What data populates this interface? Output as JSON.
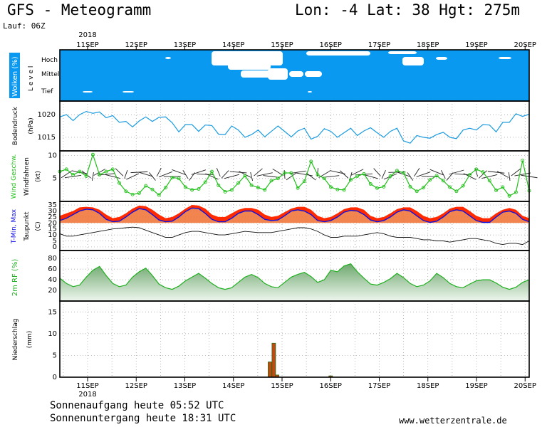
{
  "header": {
    "title": "GFS - Meteogramm",
    "location": "Lon: -4 Lat: 38 Hgt: 275m",
    "run": "Lauf: 06Z"
  },
  "footer": {
    "sunrise": "Sonnenaufgang heute 05:52 UTC",
    "sunset": "Sonnenuntergang heute 18:31 UTC",
    "site": "www.wetterzentrale.de"
  },
  "chart_data": {
    "type": "line",
    "year": "2018",
    "dates": [
      "11SEP",
      "12SEP",
      "13SEP",
      "14SEP",
      "15SEP",
      "16SEP",
      "17SEP",
      "18SEP",
      "19SEP",
      "20SEP"
    ],
    "colors": {
      "cloud_bg": "#0a99f0",
      "pressure": "#1a9be0",
      "wind": "#22c01a",
      "tmax": "#ff2a00",
      "tmin": "#1010e0",
      "rh": "#1fb01f",
      "precip": "#c04a10"
    },
    "panels": {
      "clouds": {
        "ylabel": "Wolken (%)",
        "ylabel2": "L e v e l",
        "levels": [
          "Hoch",
          "Mittel",
          "Tief"
        ]
      },
      "pressure": {
        "ylabel": "Bodendruck",
        "ylabel2": "(hPa)",
        "ticks": [
          "1020",
          "1015"
        ],
        "ylim": [
          1012,
          1023
        ],
        "values": [
          1019.5,
          1020,
          1018.7,
          1020,
          1020.7,
          1020.3,
          1020.6,
          1019.3,
          1019.8,
          1018.3,
          1018.5,
          1017.3,
          1018.6,
          1019.5,
          1018.5,
          1019.4,
          1019.5,
          1018.2,
          1016.2,
          1017.8,
          1017.8,
          1016.3,
          1017.7,
          1017.6,
          1015.7,
          1015.6,
          1017.5,
          1016.6,
          1015.0,
          1015.6,
          1016.6,
          1015.1,
          1016.3,
          1017.5,
          1016.3,
          1015.1,
          1016.4,
          1017.0,
          1014.6,
          1015.2,
          1016.9,
          1016.3,
          1015.0,
          1016.0,
          1017.0,
          1015.4,
          1016.4,
          1017.1,
          1016.0,
          1015.0,
          1016.3,
          1017.0,
          1014.2,
          1013.7,
          1015.4,
          1015.0,
          1014.8,
          1015.6,
          1016.1,
          1015.0,
          1014.7,
          1016.6,
          1017.0,
          1016.6,
          1017.8,
          1017.7,
          1016.2,
          1018.3,
          1018.3,
          1020.2,
          1019.6,
          1020.1
        ]
      },
      "wind": {
        "ylabel": "Wind Geschw.",
        "ylabel2": "Windfahnen",
        "ylabel3": "(kt)",
        "ticks": [
          "10",
          "5"
        ],
        "ylim": [
          0,
          11
        ],
        "values": [
          6.5,
          7,
          5.8,
          6.5,
          5.5,
          10.2,
          5.8,
          6.5,
          7,
          4,
          2.2,
          1.5,
          1.8,
          3.4,
          2.6,
          1.4,
          3,
          5.2,
          5,
          3.1,
          2.5,
          2.7,
          4.2,
          6.5,
          3.5,
          2.1,
          2.5,
          4,
          5.6,
          3.5,
          3,
          2.5,
          4.5,
          5,
          6.2,
          6.2,
          2.9,
          4.4,
          8.7,
          5.8,
          5,
          3.1,
          2.6,
          2.5,
          4.7,
          5.5,
          6,
          3.8,
          2.9,
          3.2,
          5.5,
          6.7,
          6.2,
          3.2,
          2.2,
          3,
          4.7,
          5.6,
          4.5,
          3.1,
          2.2,
          3.4,
          5.8,
          7,
          6.4,
          4.5,
          2.4,
          3.1,
          1.2,
          2,
          8.9,
          2.3
        ]
      },
      "temperature": {
        "ylabel": "T-Min, Max",
        "ylabel2": "Taupunkt",
        "ylabel3": "(C)",
        "ticks": [
          "35",
          "30",
          "25",
          "20",
          "15",
          "10",
          "5",
          "0"
        ],
        "ylim": [
          -3,
          38
        ],
        "tmin": [
          22,
          24,
          27,
          30,
          31.5,
          31,
          28,
          23,
          21,
          21.5,
          25,
          29,
          32,
          31,
          27,
          22.5,
          21,
          21.5,
          25,
          29.5,
          32.5,
          32,
          28,
          23,
          21,
          21,
          24,
          28,
          30,
          30,
          27,
          23,
          22,
          22.5,
          26,
          30,
          31,
          30,
          27,
          22,
          21,
          22,
          25,
          29,
          30.5,
          30,
          27,
          22.5,
          21,
          22,
          25,
          29,
          31,
          30,
          26,
          22,
          20.5,
          21.5,
          25,
          29.5,
          31,
          30,
          26,
          22,
          20.5,
          20.5,
          25,
          29,
          30,
          28,
          23,
          21
        ],
        "tmax": [
          26,
          28,
          30,
          33,
          33.5,
          33,
          31,
          27,
          24,
          25,
          28,
          32,
          34.5,
          34,
          31,
          27,
          24,
          25,
          28,
          32,
          35,
          34.5,
          32,
          27,
          25,
          25,
          28,
          31,
          32.5,
          32.5,
          31,
          27,
          25,
          26,
          29,
          32,
          33.5,
          33.5,
          31,
          26,
          24,
          25,
          28,
          31.5,
          33,
          33,
          31,
          26,
          24,
          25,
          28,
          31.5,
          33,
          33,
          30,
          26,
          24,
          25,
          28,
          32,
          33.5,
          33.5,
          30,
          26,
          24,
          24,
          28,
          31,
          32.5,
          31,
          26,
          24
        ],
        "dewpoint": [
          11,
          9,
          9,
          10,
          11,
          12,
          13,
          14,
          15,
          15.5,
          16,
          16.5,
          16,
          14,
          12,
          10,
          8,
          8,
          10,
          12,
          13,
          13,
          12,
          11,
          10,
          10,
          11,
          12,
          13,
          12.5,
          12,
          12,
          12,
          13,
          14,
          15,
          16,
          16,
          15,
          13,
          10,
          8,
          8,
          9,
          9,
          9,
          10,
          11,
          12,
          11,
          9,
          8,
          8,
          8,
          7,
          6,
          6,
          5,
          5,
          4,
          5,
          6,
          7,
          7,
          6,
          5,
          3,
          2,
          3,
          3,
          2,
          5
        ]
      },
      "rh": {
        "ylabel": "2m RF (%)",
        "ticks": [
          "80",
          "60",
          "40",
          "20"
        ],
        "ylim": [
          0,
          95
        ],
        "values": [
          43,
          33,
          27,
          30,
          45,
          58,
          65,
          48,
          33,
          27,
          30,
          45,
          55,
          62,
          48,
          32,
          25,
          22,
          28,
          38,
          45,
          52,
          43,
          33,
          25,
          22,
          25,
          35,
          45,
          50,
          44,
          33,
          27,
          25,
          35,
          45,
          50,
          54,
          46,
          35,
          40,
          58,
          55,
          66,
          70,
          55,
          43,
          32,
          30,
          35,
          42,
          52,
          44,
          33,
          27,
          30,
          38,
          52,
          44,
          33,
          27,
          25,
          32,
          38,
          40,
          40,
          34,
          26,
          22,
          26,
          35,
          40
        ]
      },
      "precip": {
        "ylabel": "Niederschlag",
        "ylabel2": "(mm)",
        "ticks": [
          "15",
          "10",
          "5",
          "0"
        ],
        "ylim": [
          0,
          17.5
        ],
        "bars": [
          {
            "x": 4.75,
            "v": 3.5
          },
          {
            "x": 4.83,
            "v": 7.8
          },
          {
            "x": 4.9,
            "v": 0.5
          },
          {
            "x": 6.0,
            "v": 0.3
          }
        ]
      }
    }
  }
}
